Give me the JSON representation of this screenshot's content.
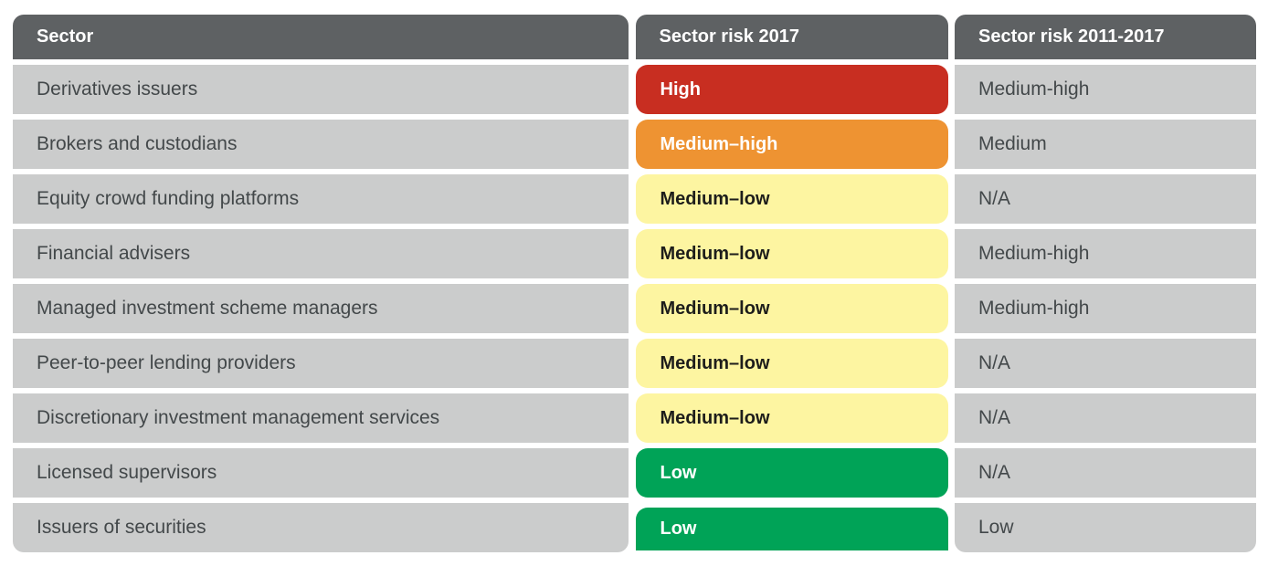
{
  "colors": {
    "header-bg": "#5e6163",
    "row-bg": "#cbcccc",
    "row-text": "#43484a",
    "risk-high": "#c82e21",
    "risk-medium-high": "#ee9332",
    "risk-medium-low": "#fdf5a1",
    "risk-low": "#00a357",
    "pill-text-light": "#ffffff",
    "pill-text-dark": "#1d1d1b"
  },
  "table": {
    "headers": {
      "sector": "Sector",
      "risk_2017": "Sector risk 2017",
      "risk_2011_2017": "Sector risk 2011-2017"
    },
    "rows": [
      {
        "sector": "Derivatives issuers",
        "risk_2017": "High",
        "risk_2017_level": "high",
        "risk_2011_2017": "Medium-high"
      },
      {
        "sector": "Brokers and custodians",
        "risk_2017": "Medium–high",
        "risk_2017_level": "medium-high",
        "risk_2011_2017": "Medium"
      },
      {
        "sector": "Equity crowd funding platforms",
        "risk_2017": "Medium–low",
        "risk_2017_level": "medium-low",
        "risk_2011_2017": "N/A"
      },
      {
        "sector": "Financial advisers",
        "risk_2017": "Medium–low",
        "risk_2017_level": "medium-low",
        "risk_2011_2017": "Medium-high"
      },
      {
        "sector": "Managed investment scheme managers",
        "risk_2017": "Medium–low",
        "risk_2017_level": "medium-low",
        "risk_2011_2017": "Medium-high"
      },
      {
        "sector": "Peer-to-peer lending providers",
        "risk_2017": "Medium–low",
        "risk_2017_level": "medium-low",
        "risk_2011_2017": "N/A"
      },
      {
        "sector": "Discretionary investment management services",
        "risk_2017": "Medium–low",
        "risk_2017_level": "medium-low",
        "risk_2011_2017": "N/A"
      },
      {
        "sector": "Licensed supervisors",
        "risk_2017": "Low",
        "risk_2017_level": "low",
        "risk_2011_2017": "N/A"
      },
      {
        "sector": "Issuers of securities",
        "risk_2017": "Low",
        "risk_2017_level": "low",
        "risk_2011_2017": "Low"
      }
    ]
  },
  "chart_data": {
    "type": "table",
    "title": "",
    "columns": [
      "Sector",
      "Sector risk 2017",
      "Sector risk 2011-2017"
    ],
    "rows": [
      [
        "Derivatives issuers",
        "High",
        "Medium-high"
      ],
      [
        "Brokers and custodians",
        "Medium–high",
        "Medium"
      ],
      [
        "Equity crowd funding platforms",
        "Medium–low",
        "N/A"
      ],
      [
        "Financial advisers",
        "Medium–low",
        "Medium-high"
      ],
      [
        "Managed investment scheme managers",
        "Medium–low",
        "Medium-high"
      ],
      [
        "Peer-to-peer lending providers",
        "Medium–low",
        "N/A"
      ],
      [
        "Discretionary investment management services",
        "Medium–low",
        "N/A"
      ],
      [
        "Licensed supervisors",
        "Low",
        "N/A"
      ],
      [
        "Issuers of securities",
        "Low",
        "Low"
      ]
    ],
    "cell_color_coding": {
      "High": "#c82e21",
      "Medium–high": "#ee9332",
      "Medium–low": "#fdf5a1",
      "Low": "#00a357"
    }
  }
}
